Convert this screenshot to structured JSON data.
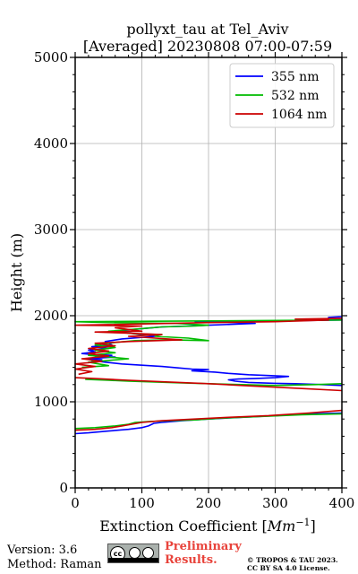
{
  "chart_data": {
    "type": "line",
    "title": "pollyxt_tau at Tel_Aviv",
    "subtitle": "[Averaged] 20230808 07:00-07:59",
    "xlabel": "Extinction Coefficient [Mm^-1]",
    "ylabel": "Height (m)",
    "xlim": [
      0,
      400
    ],
    "ylim": [
      0,
      5000
    ],
    "xticks": [
      "0",
      "100",
      "200",
      "300",
      "400"
    ],
    "yticks": [
      "0",
      "1000",
      "2000",
      "3000",
      "4000",
      "5000"
    ],
    "grid": true,
    "legend_position": "top-right",
    "series": [
      {
        "name": "355 nm",
        "color": "#0000ff",
        "points": [
          [
            0,
            630
          ],
          [
            20,
            640
          ],
          [
            50,
            660
          ],
          [
            80,
            680
          ],
          [
            100,
            700
          ],
          [
            110,
            720
          ],
          [
            118,
            750
          ],
          [
            130,
            760
          ],
          [
            160,
            780
          ],
          [
            200,
            800
          ],
          [
            250,
            820
          ],
          [
            300,
            840
          ],
          [
            350,
            860
          ],
          [
            400,
            870
          ],
          null,
          [
            400,
            1190
          ],
          [
            370,
            1200
          ],
          [
            330,
            1210
          ],
          [
            300,
            1215
          ],
          [
            260,
            1225
          ],
          [
            240,
            1240
          ],
          [
            230,
            1255
          ],
          [
            245,
            1265
          ],
          [
            270,
            1270
          ],
          [
            300,
            1280
          ],
          [
            320,
            1295
          ],
          [
            290,
            1305
          ],
          [
            260,
            1315
          ],
          [
            230,
            1330
          ],
          [
            210,
            1345
          ],
          [
            175,
            1360
          ],
          [
            200,
            1375
          ],
          [
            175,
            1380
          ],
          [
            160,
            1390
          ],
          [
            130,
            1410
          ],
          [
            100,
            1425
          ],
          [
            70,
            1440
          ],
          [
            45,
            1460
          ],
          [
            25,
            1480
          ],
          [
            40,
            1490
          ],
          [
            20,
            1500
          ],
          [
            40,
            1510
          ],
          [
            60,
            1520
          ],
          [
            30,
            1530
          ],
          [
            55,
            1540
          ],
          [
            25,
            1550
          ],
          [
            10,
            1560
          ],
          [
            30,
            1580
          ],
          [
            20,
            1600
          ],
          [
            50,
            1620
          ],
          [
            25,
            1640
          ],
          [
            55,
            1660
          ],
          [
            45,
            1700
          ],
          [
            70,
            1730
          ],
          [
            120,
            1760
          ],
          [
            90,
            1790
          ],
          [
            60,
            1820
          ],
          [
            100,
            1850
          ],
          [
            130,
            1870
          ],
          [
            170,
            1880
          ],
          [
            200,
            1890
          ],
          [
            270,
            1910
          ],
          [
            250,
            1920
          ],
          [
            180,
            1930
          ],
          [
            300,
            1940
          ],
          [
            400,
            1950
          ],
          [
            380,
            1980
          ],
          [
            400,
            1990
          ]
        ]
      },
      {
        "name": "532 nm",
        "color": "#00bb00",
        "points": [
          [
            0,
            690
          ],
          [
            30,
            700
          ],
          [
            60,
            720
          ],
          [
            80,
            740
          ],
          [
            90,
            760
          ],
          [
            110,
            770
          ],
          [
            140,
            780
          ],
          [
            180,
            790
          ],
          [
            220,
            810
          ],
          [
            280,
            830
          ],
          [
            340,
            850
          ],
          [
            400,
            860
          ],
          null,
          [
            400,
            1210
          ],
          [
            360,
            1200
          ],
          [
            300,
            1190
          ],
          [
            250,
            1200
          ],
          [
            200,
            1210
          ],
          [
            160,
            1220
          ],
          [
            120,
            1230
          ],
          [
            80,
            1240
          ],
          [
            50,
            1250
          ],
          [
            15,
            1260
          ],
          null,
          [
            10,
            1400
          ],
          [
            50,
            1420
          ],
          [
            20,
            1460
          ],
          [
            80,
            1500
          ],
          [
            20,
            1540
          ],
          [
            60,
            1570
          ],
          [
            30,
            1600
          ],
          [
            60,
            1630
          ],
          [
            30,
            1660
          ],
          [
            60,
            1690
          ],
          [
            90,
            1710
          ],
          [
            140,
            1720
          ],
          [
            200,
            1710
          ],
          [
            170,
            1740
          ],
          [
            120,
            1760
          ],
          [
            130,
            1780
          ],
          [
            90,
            1790
          ],
          [
            50,
            1820
          ],
          [
            100,
            1850
          ],
          [
            130,
            1870
          ],
          [
            180,
            1880
          ],
          [
            200,
            1890
          ],
          [
            150,
            1910
          ],
          [
            50,
            1920
          ],
          [
            0,
            1930
          ],
          [
            200,
            1940
          ],
          [
            400,
            1950
          ]
        ]
      },
      {
        "name": "1064 nm",
        "color": "#cc0000",
        "points": [
          [
            0,
            670
          ],
          [
            30,
            680
          ],
          [
            55,
            700
          ],
          [
            70,
            720
          ],
          [
            85,
            740
          ],
          [
            100,
            760
          ],
          [
            130,
            780
          ],
          [
            180,
            800
          ],
          [
            230,
            820
          ],
          [
            290,
            840
          ],
          [
            350,
            870
          ],
          [
            400,
            900
          ],
          null,
          [
            400,
            1130
          ],
          [
            350,
            1150
          ],
          [
            300,
            1170
          ],
          [
            250,
            1190
          ],
          [
            200,
            1210
          ],
          [
            140,
            1230
          ],
          [
            80,
            1250
          ],
          [
            30,
            1270
          ],
          [
            0,
            1280
          ],
          null,
          [
            5,
            1320
          ],
          [
            25,
            1350
          ],
          [
            0,
            1380
          ],
          [
            30,
            1410
          ],
          [
            0,
            1440
          ],
          [
            40,
            1470
          ],
          [
            10,
            1500
          ],
          [
            50,
            1530
          ],
          [
            20,
            1560
          ],
          [
            50,
            1590
          ],
          [
            20,
            1620
          ],
          [
            60,
            1650
          ],
          [
            30,
            1680
          ],
          [
            80,
            1700
          ],
          [
            160,
            1720
          ],
          [
            120,
            1740
          ],
          [
            80,
            1760
          ],
          [
            130,
            1780
          ],
          [
            70,
            1800
          ],
          [
            30,
            1810
          ],
          [
            100,
            1820
          ],
          [
            80,
            1840
          ],
          [
            60,
            1860
          ],
          [
            100,
            1880
          ],
          [
            0,
            1890
          ],
          [
            200,
            1920
          ],
          [
            300,
            1930
          ],
          [
            380,
            1950
          ],
          [
            330,
            1960
          ],
          [
            400,
            1970
          ]
        ]
      }
    ]
  },
  "footer": {
    "version": "Version: 3.6",
    "method": "Method: Raman",
    "cc_label": "cc",
    "preliminary": [
      "Preliminary",
      "Results."
    ],
    "copyright": [
      "© TROPOS & TAU 2023.",
      "CC BY SA 4.0 License."
    ]
  }
}
